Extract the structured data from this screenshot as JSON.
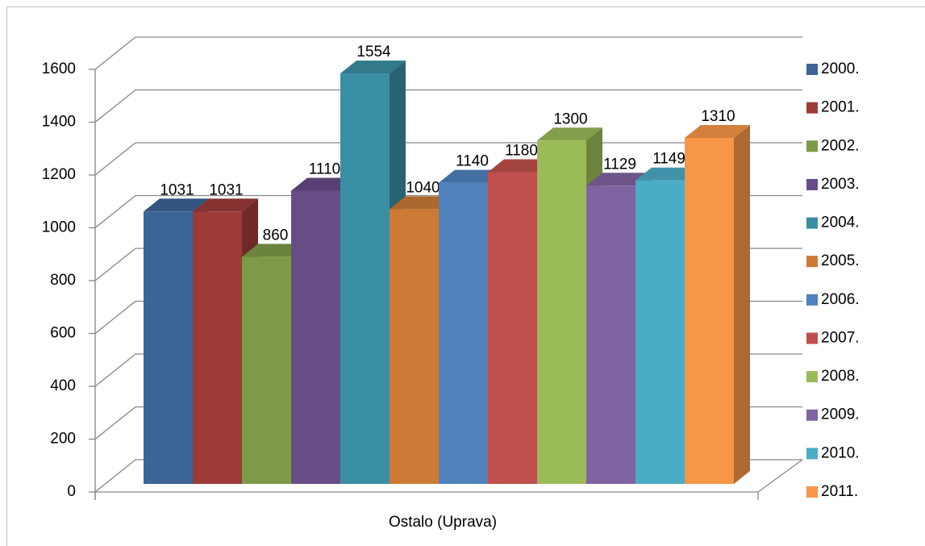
{
  "chart_data": {
    "type": "bar3d",
    "categories": [
      "Ostalo (Uprava)"
    ],
    "series": [
      {
        "name": "2000.",
        "color": "#3c6497",
        "values": [
          1031
        ]
      },
      {
        "name": "2001.",
        "color": "#9e3b39",
        "values": [
          1031
        ]
      },
      {
        "name": "2002.",
        "color": "#7e9a48",
        "values": [
          860
        ]
      },
      {
        "name": "2003.",
        "color": "#674d86",
        "values": [
          1110
        ]
      },
      {
        "name": "2004.",
        "color": "#3a8ea4",
        "values": [
          1554
        ]
      },
      {
        "name": "2005.",
        "color": "#cc7a35",
        "values": [
          1040
        ]
      },
      {
        "name": "2006.",
        "color": "#4f81bd",
        "values": [
          1140
        ]
      },
      {
        "name": "2007.",
        "color": "#c0504d",
        "values": [
          1180
        ]
      },
      {
        "name": "2008.",
        "color": "#9bbb59",
        "values": [
          1300
        ]
      },
      {
        "name": "2009.",
        "color": "#8064a2",
        "values": [
          1129
        ]
      },
      {
        "name": "2010.",
        "color": "#4bacc6",
        "values": [
          1149
        ]
      },
      {
        "name": "2011.",
        "color": "#f79646",
        "values": [
          1310
        ]
      }
    ],
    "ylim": [
      0,
      1600
    ],
    "yticks": [
      0,
      200,
      400,
      600,
      800,
      1000,
      1200,
      1400,
      1600
    ],
    "grid": true,
    "legend": "right"
  }
}
